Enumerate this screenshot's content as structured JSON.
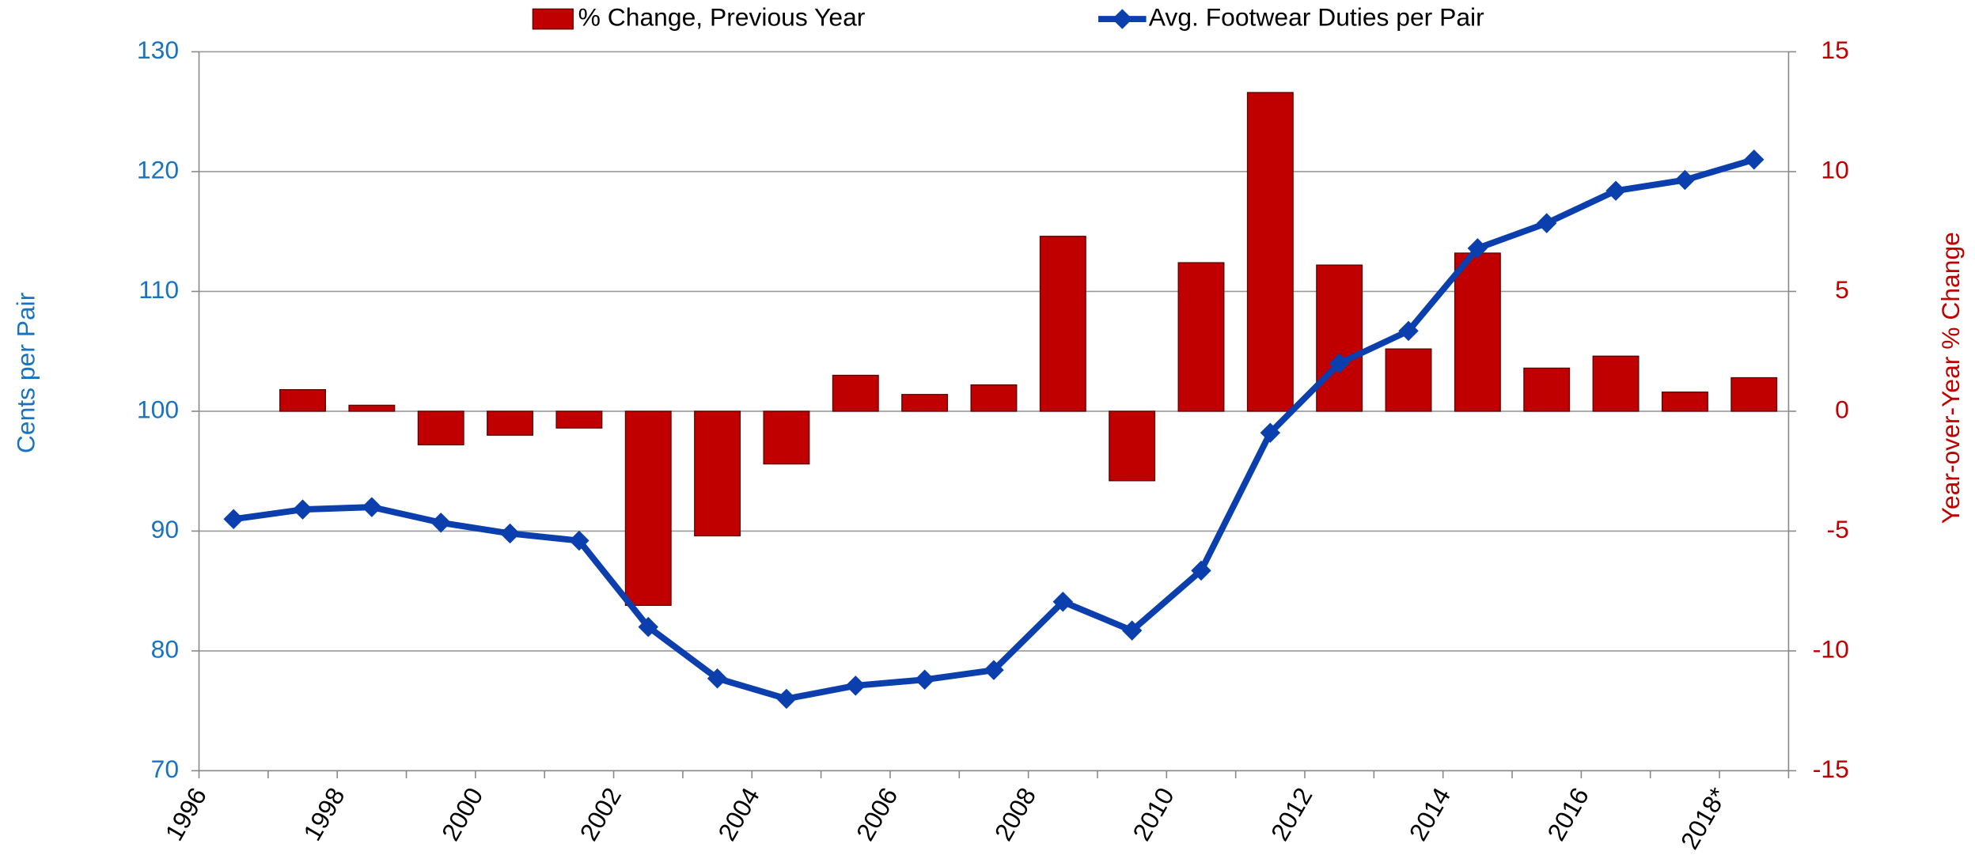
{
  "chart_data": {
    "type": "combo",
    "categories": [
      "1996",
      null,
      "1998",
      null,
      "2000",
      null,
      "2002",
      null,
      "2004",
      null,
      "2006",
      null,
      "2008",
      null,
      "2010",
      null,
      "2012",
      null,
      "2014",
      null,
      "2016",
      null,
      "2018*"
    ],
    "series": [
      {
        "name": "% Change, Previous Year",
        "type": "bar",
        "axis": "y2",
        "color": "#c00000",
        "values": [
          null,
          0.9,
          0.25,
          -1.4,
          -1.0,
          -0.7,
          -8.1,
          -5.2,
          -2.2,
          1.5,
          0.7,
          1.1,
          7.3,
          -2.9,
          6.2,
          13.3,
          6.1,
          2.6,
          6.6,
          1.8,
          2.3,
          0.8,
          1.4
        ]
      },
      {
        "name": "Avg. Footwear Duties per Pair",
        "type": "line",
        "axis": "y",
        "color": "#0b3fae",
        "values": [
          91.0,
          91.8,
          92.0,
          90.7,
          89.8,
          89.2,
          82.0,
          77.7,
          76.0,
          77.1,
          77.6,
          78.4,
          84.1,
          81.7,
          86.7,
          98.2,
          104.0,
          106.7,
          113.6,
          115.7,
          118.4,
          119.3,
          121.0
        ]
      }
    ],
    "ylabel": "Cents per Pair",
    "y2label": "Year-over-Year % Change",
    "ylim": [
      70,
      130
    ],
    "yticks": [
      70,
      80,
      90,
      100,
      110,
      120,
      130
    ],
    "y2lim": [
      -15,
      15
    ],
    "y2ticks": [
      -15,
      -10,
      -5,
      0,
      5,
      10,
      15
    ],
    "ycolor": "#1a73bf",
    "y2color": "#c00000",
    "grid": true,
    "legend": "top"
  }
}
